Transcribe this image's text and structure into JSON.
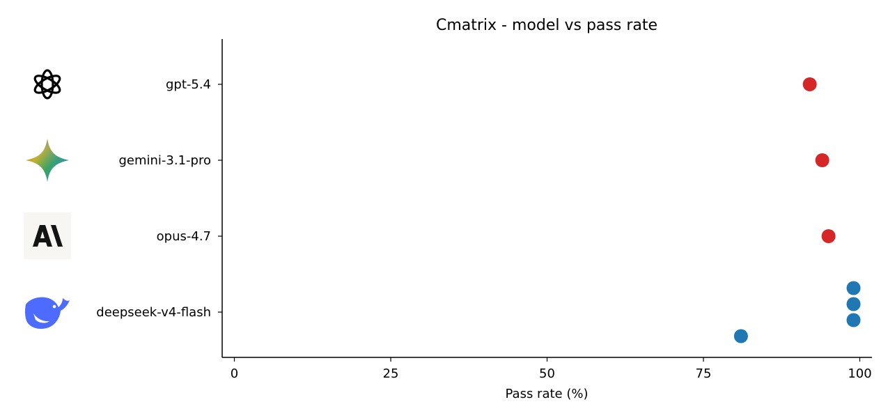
{
  "chart_data": {
    "type": "scatter",
    "title": "Cmatrix - model vs pass rate",
    "xlabel": "Pass rate (%)",
    "ylabel": "",
    "xlim": [
      -2,
      102
    ],
    "xticks": [
      0,
      25,
      50,
      75,
      100
    ],
    "xtick_labels": [
      "0",
      "25",
      "50",
      "75",
      "100"
    ],
    "grid": false,
    "categories": [
      "gpt-5.4",
      "gemini-3.1-pro",
      "opus-4.7",
      "deepseek-v4-flash"
    ],
    "category_icons": [
      "openai-logo-icon",
      "gemini-logo-icon",
      "anthropic-logo-icon",
      "deepseek-logo-icon"
    ],
    "points": [
      {
        "model": "gpt-5.4",
        "x": 92,
        "color": "#d62728"
      },
      {
        "model": "gemini-3.1-pro",
        "x": 94,
        "color": "#d62728"
      },
      {
        "model": "opus-4.7",
        "x": 95,
        "color": "#d62728"
      },
      {
        "model": "deepseek-v4-flash",
        "x": 99,
        "color": "#1f77b4"
      },
      {
        "model": "deepseek-v4-flash",
        "x": 99,
        "color": "#1f77b4"
      },
      {
        "model": "deepseek-v4-flash",
        "x": 99,
        "color": "#1f77b4"
      },
      {
        "model": "deepseek-v4-flash",
        "x": 81,
        "color": "#1f77b4"
      }
    ]
  }
}
